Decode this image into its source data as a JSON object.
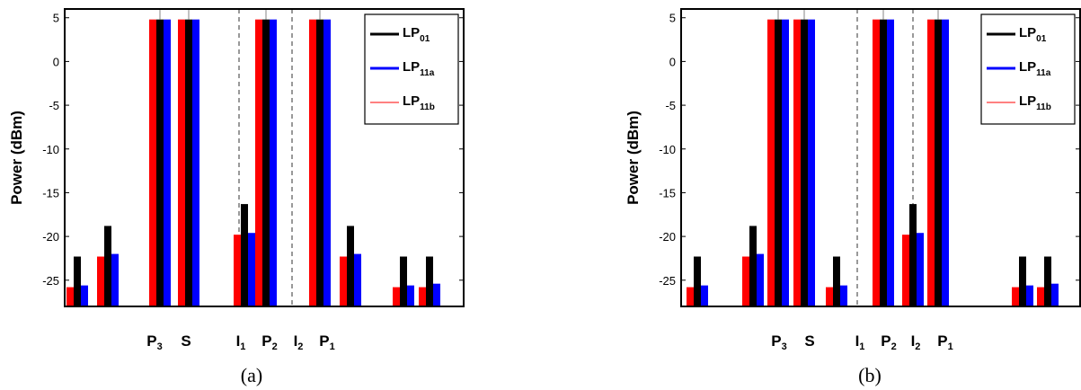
{
  "chart_data": [
    {
      "type": "bar",
      "caption": "(a)",
      "ylabel": "Power (dBm)",
      "ylim": [
        -28,
        6
      ],
      "yticks": [
        5,
        0,
        -5,
        -10,
        -15,
        -20,
        -25
      ],
      "series": [
        {
          "name": "LP",
          "sub": "01",
          "color": "#000000"
        },
        {
          "name": "LP",
          "sub": "11a",
          "color": "#0000ff"
        },
        {
          "name": "LP",
          "sub": "11b",
          "color": "#ff0000"
        }
      ],
      "legend": "top-right",
      "freq_labels": [
        {
          "main": "P",
          "sub": "3"
        },
        {
          "main": "S",
          "sub": ""
        },
        {
          "main": "I",
          "sub": "1"
        },
        {
          "main": "P",
          "sub": "2"
        },
        {
          "main": "I",
          "sub": "2"
        },
        {
          "main": "P",
          "sub": "1"
        }
      ],
      "groups": [
        {
          "pos": 0,
          "red": -25.8,
          "black": -22.3,
          "blue": -25.6
        },
        {
          "pos": 1,
          "red": -22.3,
          "black": -18.8,
          "blue": -22.0
        },
        {
          "pos": 3,
          "red": 4.8,
          "black": 4.8,
          "blue": 4.8
        },
        {
          "pos": 4,
          "red": 4.8,
          "black": 4.8,
          "blue": 4.8
        },
        {
          "pos": 6,
          "red": -19.8,
          "black": -16.3,
          "blue": -19.6
        },
        {
          "pos": 7,
          "red": 4.8,
          "black": 4.8,
          "blue": 4.8
        },
        {
          "pos": 9,
          "red": 4.8,
          "black": 4.8,
          "blue": 4.8
        },
        {
          "pos": 10,
          "red": -22.3,
          "black": -18.8,
          "blue": -22.0
        },
        {
          "pos": 12,
          "red": -25.8,
          "black": -22.3,
          "blue": -25.6
        },
        {
          "pos": 13,
          "red": -25.8,
          "black": -22.3,
          "blue": -25.4
        }
      ],
      "dashed_lines": [
        6,
        8
      ]
    },
    {
      "type": "bar",
      "caption": "(b)",
      "ylabel": "Power (dBm)",
      "ylim": [
        -28,
        6
      ],
      "yticks": [
        5,
        0,
        -5,
        -10,
        -15,
        -20,
        -25
      ],
      "series": [
        {
          "name": "LP",
          "sub": "01",
          "color": "#000000"
        },
        {
          "name": "LP",
          "sub": "11a",
          "color": "#0000ff"
        },
        {
          "name": "LP",
          "sub": "11b",
          "color": "#ff0000"
        }
      ],
      "legend": "top-right",
      "freq_labels": [
        {
          "main": "P",
          "sub": "3"
        },
        {
          "main": "S",
          "sub": ""
        },
        {
          "main": "I",
          "sub": "1"
        },
        {
          "main": "P",
          "sub": "2"
        },
        {
          "main": "I",
          "sub": "2"
        },
        {
          "main": "P",
          "sub": "1"
        }
      ],
      "groups": [
        {
          "pos": 0,
          "red": -25.8,
          "black": -22.3,
          "blue": -25.6
        },
        {
          "pos": 2,
          "red": -22.3,
          "black": -18.8,
          "blue": -22.0
        },
        {
          "pos": 3,
          "red": 4.8,
          "black": 4.8,
          "blue": 4.8
        },
        {
          "pos": 4,
          "red": 4.8,
          "black": 4.8,
          "blue": 4.8
        },
        {
          "pos": 5,
          "red": -25.8,
          "black": -22.3,
          "blue": -25.6
        },
        {
          "pos": 7,
          "red": 4.8,
          "black": 4.8,
          "blue": 4.8
        },
        {
          "pos": 8,
          "red": -19.8,
          "black": -16.3,
          "blue": -19.6
        },
        {
          "pos": 9,
          "red": 4.8,
          "black": 4.8,
          "blue": 4.8
        },
        {
          "pos": 12,
          "red": -25.8,
          "black": -22.3,
          "blue": -25.6
        },
        {
          "pos": 13,
          "red": -25.8,
          "black": -22.3,
          "blue": -25.4
        }
      ],
      "dashed_lines": [
        6,
        8
      ]
    }
  ]
}
